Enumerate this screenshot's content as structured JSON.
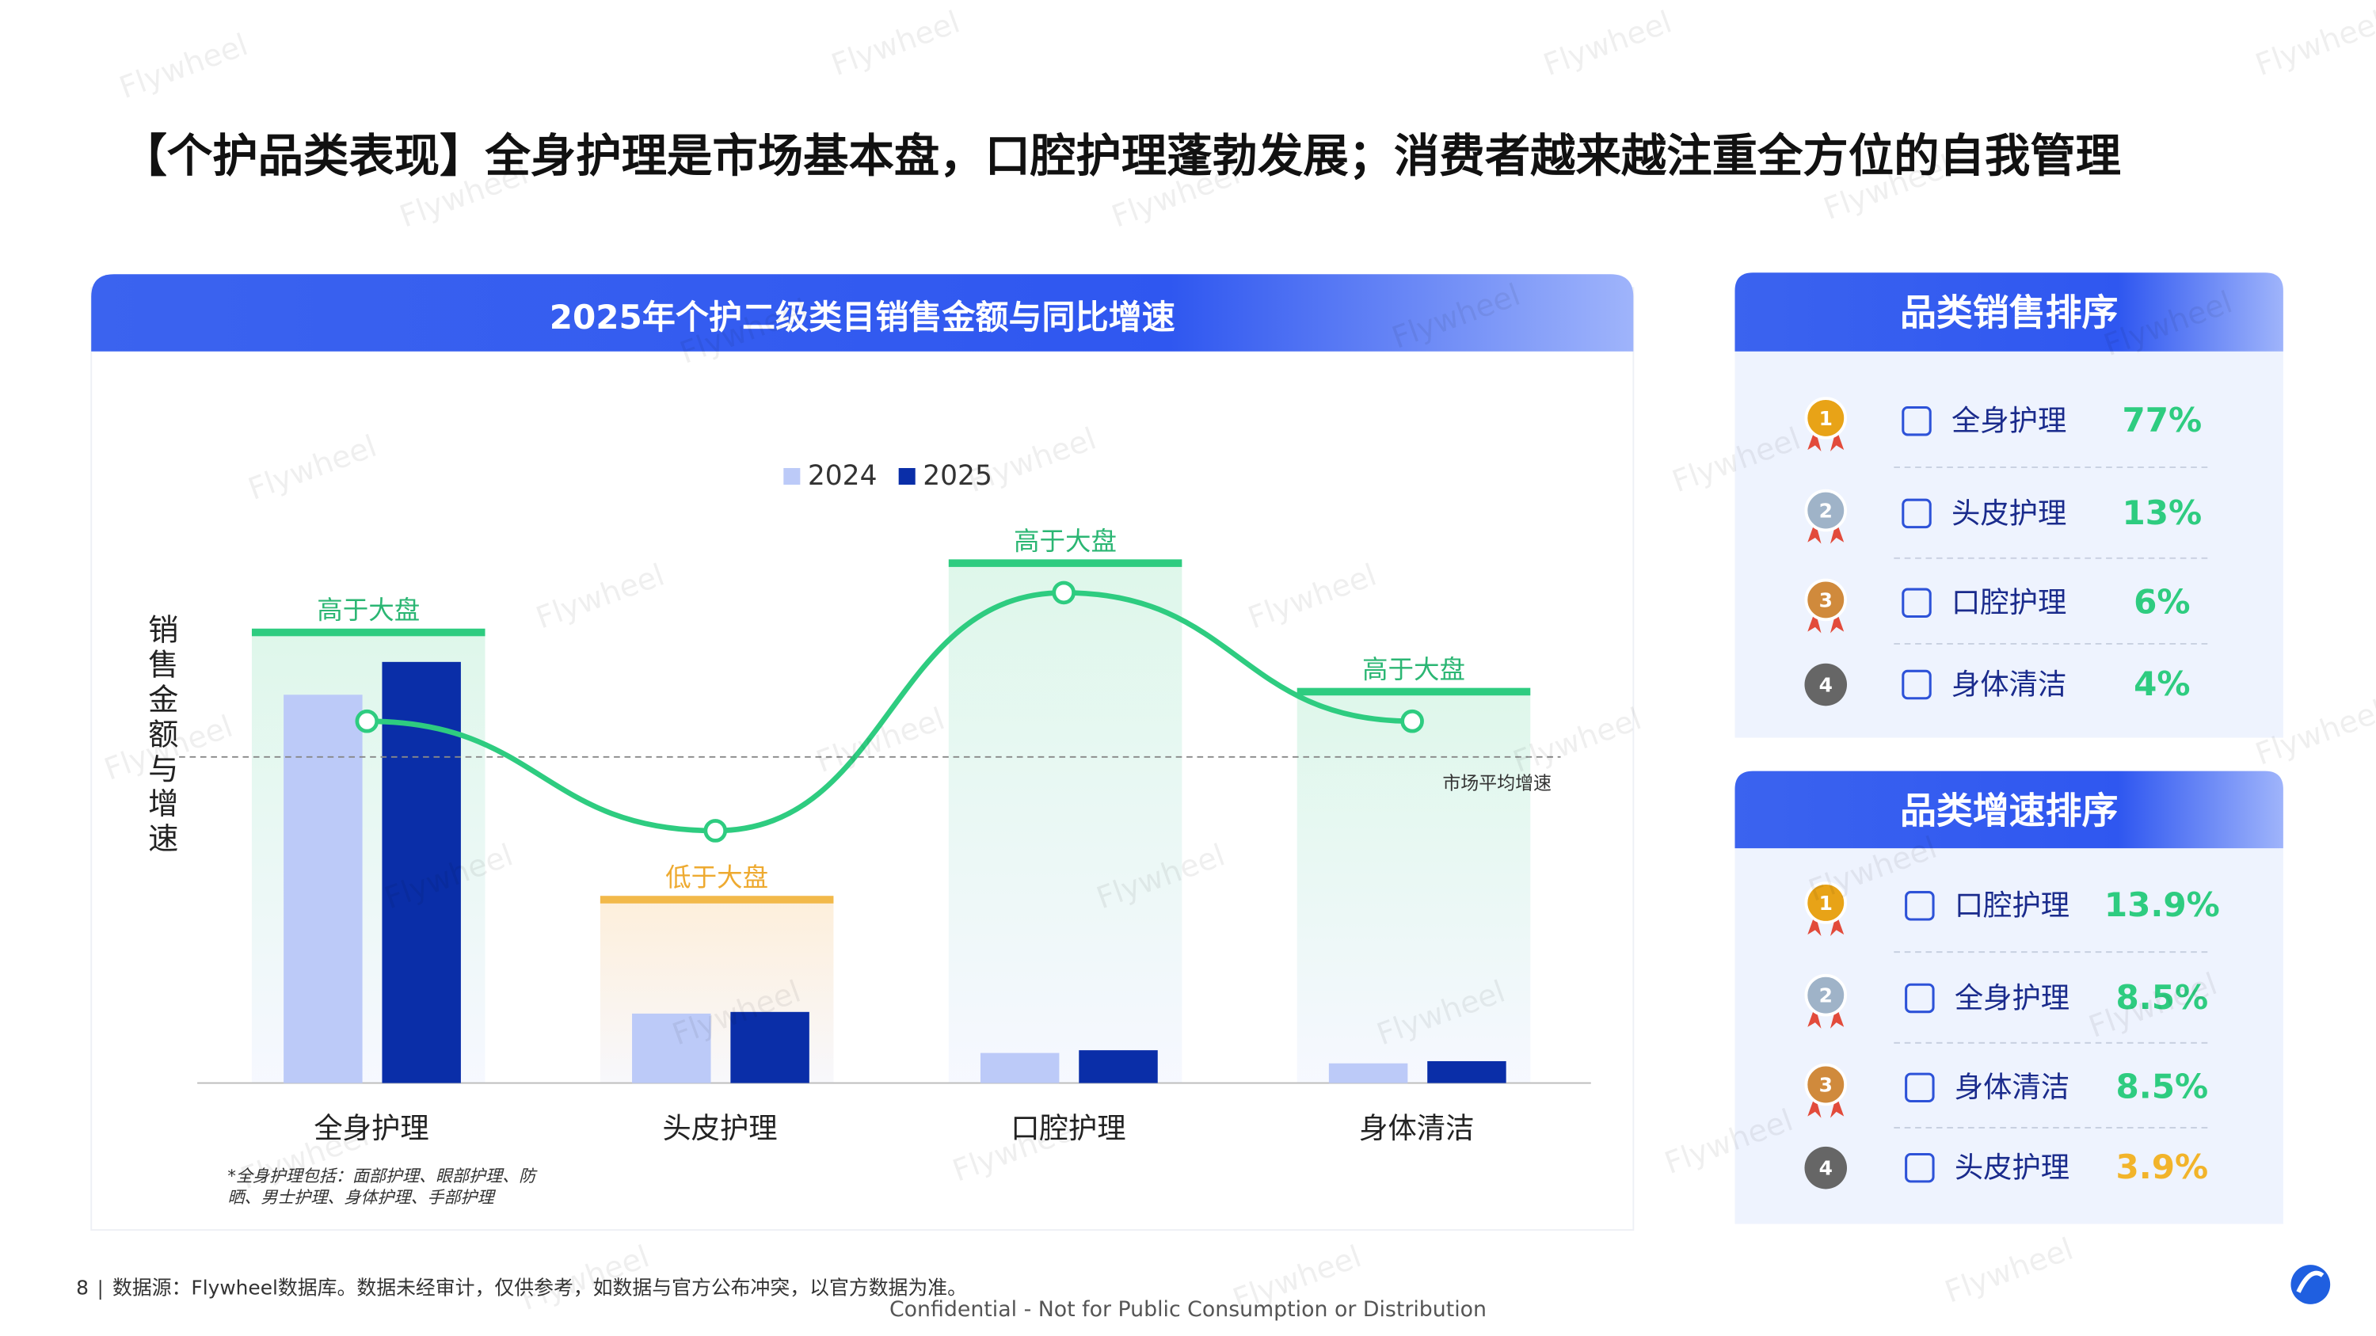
{
  "header": {
    "title": "【个护品类表现】全身护理是市场基本盘，口腔护理蓬勃发展；消费者越来越注重全方位的自我管理"
  },
  "chart_data": {
    "type": "bar",
    "title": "2025年个护二级类目销售金额与同比增速",
    "y_label": "销售金额与增速",
    "categories": [
      "全身护理",
      "头皮护理",
      "口腔护理",
      "身体清洁"
    ],
    "series": [
      {
        "name": "2024",
        "color": "#bccaf8",
        "values": [
          71,
          12.7,
          5.5,
          3.6
        ]
      },
      {
        "name": "2025",
        "color": "#0a2ea8",
        "values": [
          77,
          13,
          6,
          4
        ]
      },
      {
        "type": "line",
        "axis": "y2",
        "color": "#2ecc80",
        "values": [
          8.5,
          3.9,
          13.9,
          8.5
        ]
      }
    ],
    "ylim": [
      0,
      91.4
    ],
    "y2lim": [
      -6.7,
      14.3
    ],
    "market_average": {
      "value": 7.0,
      "label": "市场平均增速"
    },
    "zone_labels": [
      "高于大盘",
      "低于大盘",
      "高于大盘",
      "高于大盘"
    ],
    "note": [
      "*全身护理包括：面部护理、眼部护理、防",
      "晒、男士护理、身体护理、手部护理"
    ]
  },
  "sales_ranking": {
    "title": "品类销售排序",
    "items": [
      {
        "rank": "1",
        "name": "全身护理",
        "value": "77%"
      },
      {
        "rank": "2",
        "name": "头皮护理",
        "value": "13%"
      },
      {
        "rank": "3",
        "name": "口腔护理",
        "value": "6%"
      },
      {
        "rank": "4",
        "name": "身体清洁",
        "value": "4%"
      }
    ]
  },
  "growth_ranking": {
    "title": "品类增速排序",
    "items": [
      {
        "rank": "1",
        "name": "口腔护理",
        "value": "13.9%"
      },
      {
        "rank": "2",
        "name": "全身护理",
        "value": "8.5%"
      },
      {
        "rank": "3",
        "name": "身体清洁",
        "value": "8.5%"
      },
      {
        "rank": "4",
        "name": "头皮护理",
        "value": "3.9%"
      }
    ]
  },
  "footer": {
    "page": "8",
    "source": "数据源：Flywheel数据库。数据未经审计，仅供参考，如数据与官方公布冲突，以官方数据为准。",
    "confidential": "Confidential - Not for Public Consumption or Distribution"
  },
  "watermark": "Flywheel"
}
